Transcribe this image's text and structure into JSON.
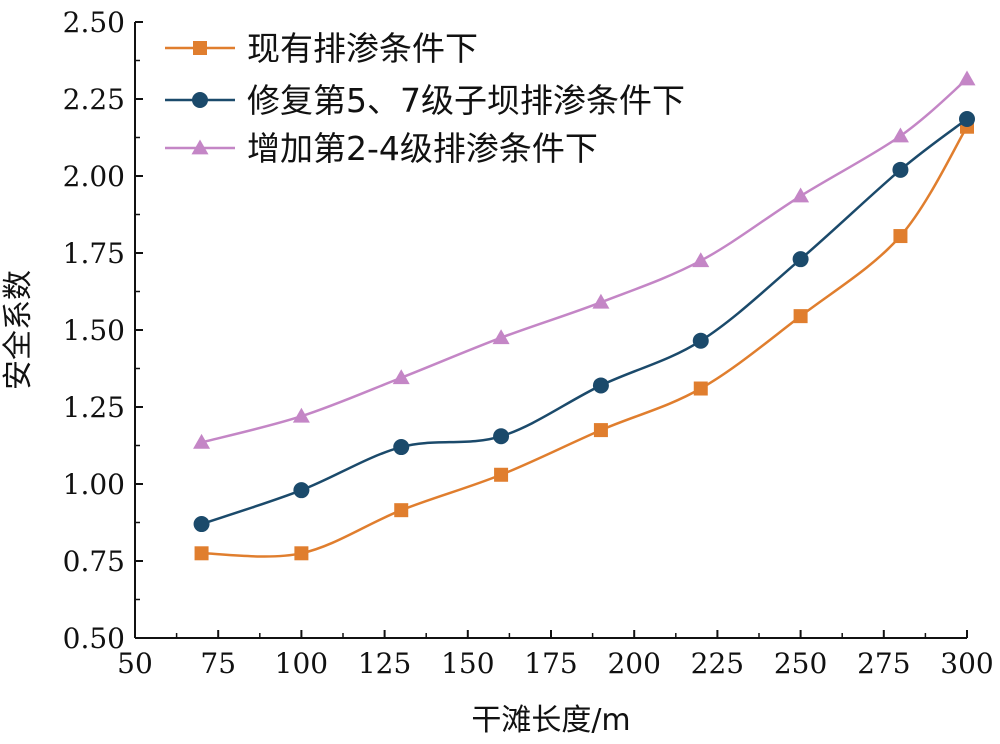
{
  "chart_data": {
    "type": "line",
    "title": "",
    "xlabel": "干滩长度/m",
    "ylabel": "安全系数",
    "xlim": [
      50,
      300
    ],
    "ylim": [
      0.5,
      2.5
    ],
    "xticks": [
      50,
      75,
      100,
      125,
      150,
      175,
      200,
      225,
      250,
      275,
      300
    ],
    "yticks": [
      0.5,
      0.75,
      1.0,
      1.25,
      1.5,
      1.75,
      2.0,
      2.25,
      2.5
    ],
    "xtick_labels": [
      "50",
      "75",
      "100",
      "125",
      "150",
      "175",
      "200",
      "225",
      "250",
      "275",
      "300"
    ],
    "ytick_labels": [
      "0.50",
      "0.75",
      "1.00",
      "1.25",
      "1.50",
      "1.75",
      "2.00",
      "2.25",
      "2.50"
    ],
    "grid": false,
    "legend_position": "top-left",
    "x": [
      70,
      100,
      130,
      160,
      190,
      220,
      250,
      280,
      300
    ],
    "series": [
      {
        "name": "现有排渗条件下",
        "marker": "square",
        "color": "#E07E2E",
        "values": [
          0.775,
          0.775,
          0.915,
          1.03,
          1.175,
          1.31,
          1.545,
          1.805,
          2.16
        ]
      },
      {
        "name": "修复第5、7级子坝排渗条件下",
        "marker": "circle",
        "color": "#1B4A6B",
        "values": [
          0.87,
          0.98,
          1.12,
          1.155,
          1.32,
          1.465,
          1.73,
          2.02,
          2.185
        ]
      },
      {
        "name": "增加第2-4级排渗条件下",
        "marker": "triangle",
        "color": "#C486C6",
        "values": [
          1.135,
          1.22,
          1.345,
          1.475,
          1.59,
          1.725,
          1.935,
          2.13,
          2.315
        ]
      }
    ]
  }
}
